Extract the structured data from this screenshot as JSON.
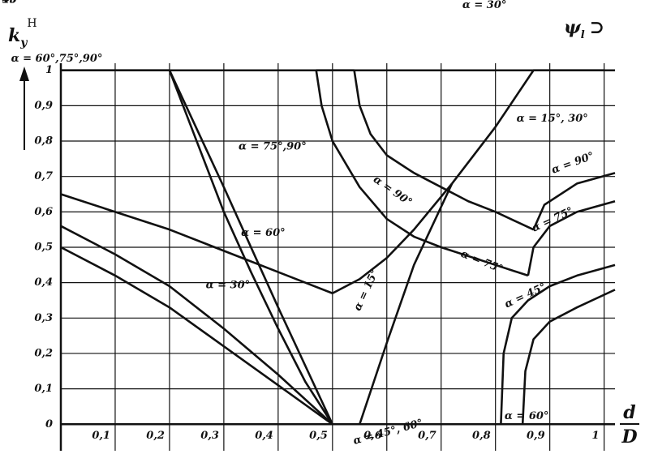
{
  "chart_data": {
    "type": "line",
    "y_label": {
      "base": "k",
      "sub": "y",
      "sup": "H"
    },
    "corner_label": {
      "base": "ψ",
      "sub": "l",
      "tail": "⊃"
    },
    "x_label": {
      "num": "d",
      "den": "D"
    },
    "xlim": [
      0,
      1.02
    ],
    "ylim": [
      -0.075,
      1.02
    ],
    "grid": true,
    "color": "#111111",
    "xticks": [
      {
        "value": 0.1,
        "label": "0,1"
      },
      {
        "value": 0.2,
        "label": "0,2"
      },
      {
        "value": 0.3,
        "label": "0,3"
      },
      {
        "value": 0.4,
        "label": "0,4"
      },
      {
        "value": 0.5,
        "label": "0,5"
      },
      {
        "value": 0.6,
        "label": "0,6"
      },
      {
        "value": 0.7,
        "label": "0,7"
      },
      {
        "value": 0.8,
        "label": "0,8"
      },
      {
        "value": 0.9,
        "label": "0,9"
      },
      1
    ],
    "yticks": [
      0,
      {
        "value": 0.1,
        "label": "0,1"
      },
      {
        "value": 0.2,
        "label": "0,2"
      },
      {
        "value": 0.3,
        "label": "0,3"
      },
      {
        "value": 0.4,
        "label": "0,4"
      },
      {
        "value": 0.5,
        "label": "0,5"
      },
      {
        "value": 0.6,
        "label": "0,6"
      },
      {
        "value": 0.7,
        "label": "0,7"
      },
      {
        "value": 0.8,
        "label": "0,8"
      },
      {
        "value": 0.9,
        "label": "0,9"
      },
      1
    ],
    "series": [
      {
        "name": "α = 60°,75°,90°",
        "x": [
          0,
          0.2
        ],
        "values": [
          1,
          1
        ]
      },
      {
        "name": "α = 75°,90°",
        "x": [
          0.2,
          0.3,
          0.4,
          0.5
        ],
        "values": [
          1,
          0.67,
          0.33,
          0
        ]
      },
      {
        "name": "α = 60°",
        "x": [
          0.2,
          0.25,
          0.3,
          0.35,
          0.4,
          0.45,
          0.5
        ],
        "values": [
          1,
          0.8,
          0.6,
          0.43,
          0.27,
          0.12,
          0
        ]
      },
      {
        "name": "α = 90°",
        "x": [
          0.47,
          0.54
        ],
        "values": [
          1,
          1
        ]
      },
      {
        "name": "α = 90°",
        "x": [
          0.54,
          0.55,
          0.57,
          0.6,
          0.65,
          0.7,
          0.75,
          0.8,
          0.87
        ],
        "values": [
          1,
          0.9,
          0.82,
          0.76,
          0.71,
          0.67,
          0.63,
          0.6,
          0.55
        ]
      },
      {
        "name": "α = 75°",
        "x": [
          0.47,
          0.48,
          0.5,
          0.55,
          0.6,
          0.65,
          0.7,
          0.8,
          0.86
        ],
        "values": [
          1,
          0.9,
          0.8,
          0.67,
          0.58,
          0.53,
          0.5,
          0.45,
          0.42
        ]
      },
      {
        "name": "α = 15°",
        "x": [
          0,
          0.1,
          0.2,
          0.3,
          0.4,
          0.5
        ],
        "values": [
          0.65,
          0.6,
          0.55,
          0.49,
          0.43,
          0.37
        ]
      },
      {
        "name": "α = 45°",
        "x": [
          0,
          0.1,
          0.2,
          0.3,
          0.4,
          0.5
        ],
        "values": [
          0.56,
          0.48,
          0.39,
          0.27,
          0.14,
          0
        ]
      },
      {
        "name": "α = 30°",
        "x": [
          0,
          0.1,
          0.2,
          0.3,
          0.4,
          0.5
        ],
        "values": [
          0.5,
          0.42,
          0.33,
          0.22,
          0.11,
          0
        ]
      },
      {
        "name": "α = 15°",
        "x": [
          0.5,
          0.55,
          0.6,
          0.65,
          0.72
        ],
        "values": [
          0.37,
          0.41,
          0.47,
          0.55,
          0.68
        ]
      },
      {
        "name": "α = 30°",
        "x": [
          0.55,
          0.6,
          0.65,
          0.72
        ],
        "values": [
          0,
          0.23,
          0.45,
          0.68
        ]
      },
      {
        "name": "α = 15°, 30°",
        "x": [
          0.72,
          0.8,
          0.87,
          1
        ],
        "values": [
          0.68,
          0.84,
          1,
          1
        ]
      },
      {
        "name": "α = 45°, 60°",
        "x": [
          0.5,
          0.55
        ],
        "values": [
          0,
          0
        ]
      },
      {
        "name": "α = 90°",
        "x": [
          0.87,
          0.89,
          0.95,
          1.02
        ],
        "values": [
          0.55,
          0.62,
          0.68,
          0.71
        ]
      },
      {
        "name": "α = 75°",
        "x": [
          0.86,
          0.87,
          0.9,
          0.95,
          1.02
        ],
        "values": [
          0.42,
          0.5,
          0.56,
          0.6,
          0.63
        ]
      },
      {
        "name": "α = 45°",
        "x": [
          0.81,
          0.815,
          0.83,
          0.86,
          0.9,
          0.95,
          1.02
        ],
        "values": [
          0,
          0.2,
          0.3,
          0.35,
          0.39,
          0.42,
          0.45
        ]
      },
      {
        "name": "α = 60°",
        "x": [
          0.85,
          0.855,
          0.87,
          0.9,
          0.95,
          1.02
        ],
        "values": [
          0,
          0.15,
          0.24,
          0.29,
          0.33,
          0.38
        ]
      }
    ]
  }
}
